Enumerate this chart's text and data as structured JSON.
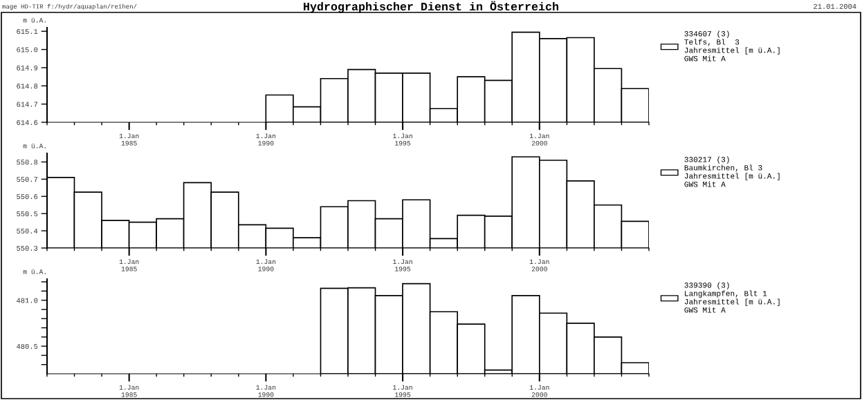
{
  "chart_data": [
    {
      "type": "bar",
      "title": "Hydrographischer Dienst in Österreich",
      "ylabel": "m ü.A.",
      "annotations": [
        "mage HD-TIR f:/hydr/aquaplan/reihen/",
        "21.01.2004"
      ],
      "x": [
        "1990-07-02",
        "1991-07-02",
        "1992-07-02",
        "1993-07-02",
        "1994-07-02",
        "1995-07-02",
        "1996-07-02",
        "1997-07-02",
        "1998-07-02",
        "1999-07-02",
        "2000-07-02",
        "2001-07-02",
        "2002-07-02",
        "2003-07-02"
      ],
      "series": [
        {
          "name": "334607 (3)\nTelfs, Bl  3\nJahresmittel [m ü.A.]\nGWS Mit A",
          "color": "#ffffff",
          "values": [
            614.75,
            614.685,
            614.84,
            614.89,
            614.87,
            614.87,
            614.675,
            614.85,
            614.83,
            615.095,
            615.06,
            615.065,
            614.895,
            614.785
          ]
        }
      ],
      "xlim": [
        "1982-01-01",
        "2004-01-01"
      ],
      "xticks": [
        {
          "value": "1985-01-01",
          "label": "1.Jan\n1985"
        },
        {
          "value": "1990-01-01",
          "label": "1.Jan\n1990"
        },
        {
          "value": "1995-01-01",
          "label": "1.Jan\n1995"
        },
        {
          "value": "2000-01-01",
          "label": "1.Jan\n2000"
        }
      ],
      "ylim": [
        614.6,
        615.12
      ],
      "yticks": [
        {
          "value": 614.6,
          "label": "614.6"
        },
        {
          "value": 614.7,
          "label": "614.7"
        },
        {
          "value": 614.8,
          "label": "614.8"
        },
        {
          "value": 614.9,
          "label": "614.9"
        },
        {
          "value": 615.0,
          "label": "615.0"
        },
        {
          "value": 615.1,
          "label": "615.1"
        }
      ],
      "grid": false,
      "legend": "right"
    },
    {
      "type": "bar",
      "ylabel": "m ü.A.",
      "x": [
        "1982-07-02",
        "1983-07-02",
        "1984-07-02",
        "1985-07-02",
        "1986-07-02",
        "1987-07-02",
        "1988-07-02",
        "1989-07-02",
        "1990-07-02",
        "1991-07-02",
        "1992-07-02",
        "1993-07-02",
        "1994-07-02",
        "1995-07-02",
        "1996-07-02",
        "1997-07-02",
        "1998-07-02",
        "1999-07-02",
        "2000-07-02",
        "2001-07-02",
        "2002-07-02",
        "2003-07-02"
      ],
      "series": [
        {
          "name": "330217 (3)\nBaumkirchen, Bl 3\nJahresmittel [m ü.A.]\nGWS Mit A",
          "color": "#ffffff",
          "values": [
            550.71,
            550.625,
            550.46,
            550.45,
            550.47,
            550.68,
            550.625,
            550.435,
            550.415,
            550.36,
            550.54,
            550.575,
            550.47,
            550.58,
            550.355,
            550.49,
            550.485,
            550.83,
            550.81,
            550.69,
            550.55,
            550.455
          ]
        }
      ],
      "xlim": [
        "1982-01-01",
        "2004-01-01"
      ],
      "xticks": [
        {
          "value": "1985-01-01",
          "label": "1.Jan\n1985"
        },
        {
          "value": "1990-01-01",
          "label": "1.Jan\n1990"
        },
        {
          "value": "1995-01-01",
          "label": "1.Jan\n1995"
        },
        {
          "value": "2000-01-01",
          "label": "1.Jan\n2000"
        }
      ],
      "ylim": [
        550.3,
        550.85
      ],
      "yticks": [
        {
          "value": 550.3,
          "label": "550.3"
        },
        {
          "value": 550.4,
          "label": "550.4"
        },
        {
          "value": 550.5,
          "label": "550.5"
        },
        {
          "value": 550.6,
          "label": "550.6"
        },
        {
          "value": 550.7,
          "label": "550.7"
        },
        {
          "value": 550.8,
          "label": "550.8"
        }
      ],
      "grid": false,
      "legend": "right"
    },
    {
      "type": "bar",
      "ylabel": "m ü.A.",
      "x": [
        "1992-07-02",
        "1993-07-02",
        "1994-07-02",
        "1995-07-02",
        "1996-07-02",
        "1997-07-02",
        "1998-07-02",
        "1999-07-02",
        "2000-07-02",
        "2001-07-02",
        "2002-07-02",
        "2003-07-02"
      ],
      "series": [
        {
          "name": "339390 (3)\nLangkampfen, Blt 1\nJahresmittel [m ü.A.]\nGWS Mit A",
          "color": "#ffffff",
          "values": [
            481.13,
            481.135,
            481.05,
            481.18,
            480.875,
            480.74,
            480.24,
            481.05,
            480.86,
            480.75,
            480.6,
            480.32
          ]
        }
      ],
      "xlim": [
        "1982-01-01",
        "2004-01-01"
      ],
      "xticks": [
        {
          "value": "1985-01-01",
          "label": "1.Jan\n1985"
        },
        {
          "value": "1990-01-01",
          "label": "1.Jan\n1990"
        },
        {
          "value": "1995-01-01",
          "label": "1.Jan\n1995"
        },
        {
          "value": "2000-01-01",
          "label": "1.Jan\n2000"
        }
      ],
      "ylim": [
        480.2,
        481.23
      ],
      "yticks": [
        {
          "value": 480.3,
          "label": null
        },
        {
          "value": 480.4,
          "label": null
        },
        {
          "value": 480.5,
          "label": "480.5"
        },
        {
          "value": 480.6,
          "label": null
        },
        {
          "value": 480.7,
          "label": null
        },
        {
          "value": 480.8,
          "label": null
        },
        {
          "value": 480.9,
          "label": null
        },
        {
          "value": 481.0,
          "label": "481.0"
        },
        {
          "value": 481.1,
          "label": null
        },
        {
          "value": 481.2,
          "label": null
        }
      ],
      "grid": false,
      "legend": "right"
    }
  ]
}
